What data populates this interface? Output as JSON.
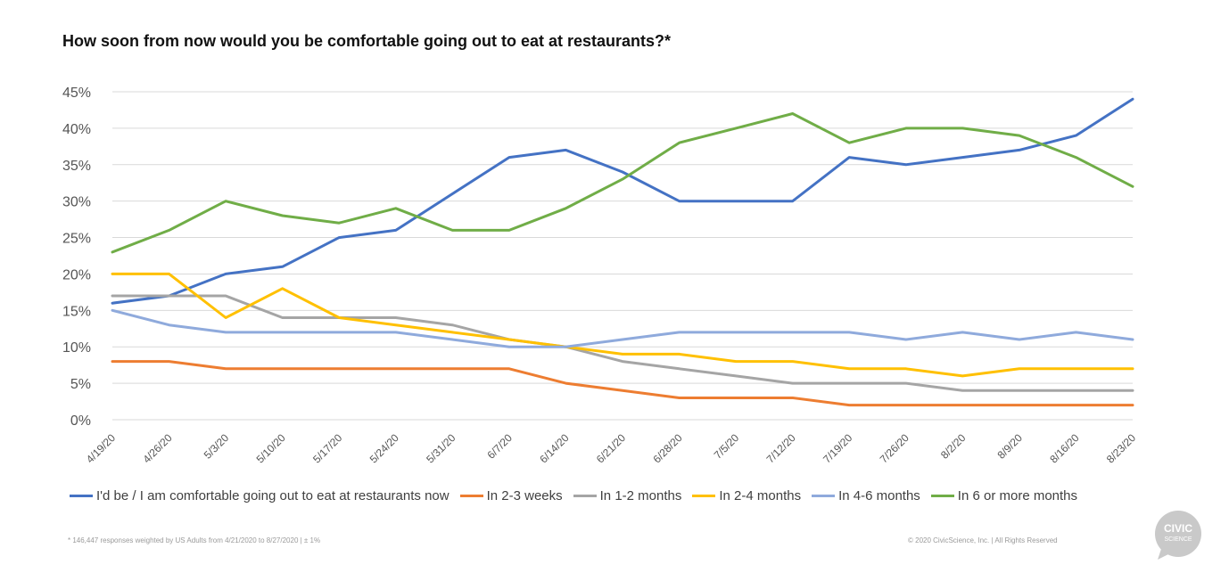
{
  "title": "How soon from now would you be comfortable going out to eat at restaurants?*",
  "footnote": "* 146,447 responses weighted by US Adults from 4/21/2020 to 8/27/2020 | ± 1%",
  "copyright": "© 2020 CivicScience, Inc.  |  All Rights Reserved",
  "logo": {
    "line1": "CIVIC",
    "line2": "SCIENCE",
    "color": "#c9c9c9"
  },
  "chart_data": {
    "type": "line",
    "title": "How soon from now would you be comfortable going out to eat at restaurants?*",
    "xlabel": "",
    "ylabel": "",
    "ylim": [
      0,
      45
    ],
    "yticks": [
      "0%",
      "5%",
      "10%",
      "15%",
      "20%",
      "25%",
      "30%",
      "35%",
      "40%",
      "45%"
    ],
    "grid": true,
    "legend_position": "bottom",
    "categories": [
      "4/19/20",
      "4/26/20",
      "5/3/20",
      "5/10/20",
      "5/17/20",
      "5/24/20",
      "5/31/20",
      "6/7/20",
      "6/14/20",
      "6/21/20",
      "6/28/20",
      "7/5/20",
      "7/12/20",
      "7/19/20",
      "7/26/20",
      "8/2/20",
      "8/9/20",
      "8/16/20",
      "8/23/20"
    ],
    "series": [
      {
        "name": "I'd be / I am comfortable going out to eat at restaurants now",
        "color": "#4472c4",
        "values": [
          16,
          17,
          20,
          21,
          25,
          26,
          31,
          36,
          37,
          34,
          30,
          30,
          30,
          36,
          35,
          36,
          37,
          39,
          44
        ]
      },
      {
        "name": "In 2-3 weeks",
        "color": "#ed7d31",
        "values": [
          8,
          8,
          7,
          7,
          7,
          7,
          7,
          7,
          5,
          4,
          3,
          3,
          3,
          2,
          2,
          2,
          2,
          2,
          2
        ]
      },
      {
        "name": "In 1-2 months",
        "color": "#a5a5a5",
        "values": [
          17,
          17,
          17,
          14,
          14,
          14,
          13,
          11,
          10,
          8,
          7,
          6,
          5,
          5,
          5,
          4,
          4,
          4,
          4
        ]
      },
      {
        "name": "In 2-4 months",
        "color": "#ffc000",
        "values": [
          20,
          20,
          14,
          18,
          14,
          13,
          12,
          11,
          10,
          9,
          9,
          8,
          8,
          7,
          7,
          6,
          7,
          7,
          7
        ]
      },
      {
        "name": "In 4-6 months",
        "color": "#8faadc",
        "values": [
          15,
          13,
          12,
          12,
          12,
          12,
          11,
          10,
          10,
          11,
          12,
          12,
          12,
          12,
          11,
          12,
          11,
          12,
          11
        ]
      },
      {
        "name": "In 6 or more months",
        "color": "#70ad47",
        "values": [
          23,
          26,
          30,
          28,
          27,
          29,
          26,
          26,
          29,
          33,
          38,
          40,
          42,
          38,
          40,
          40,
          39,
          36,
          32
        ]
      }
    ]
  }
}
